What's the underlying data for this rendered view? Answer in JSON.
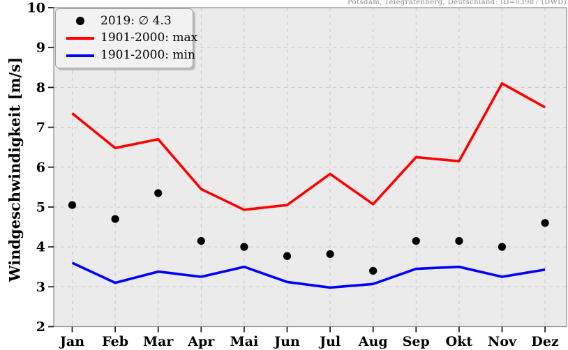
{
  "station_title": "Potsdam, Telegrafenberg, Deutschland: ID=03987 (DWD)",
  "ylabel": "Windgeschwindigkeit [m/s]",
  "chart_data": {
    "type": "line",
    "categories": [
      "Jan",
      "Feb",
      "Mar",
      "Apr",
      "Mai",
      "Jun",
      "Jul",
      "Aug",
      "Sep",
      "Okt",
      "Nov",
      "Dez"
    ],
    "series": [
      {
        "name": "2019: ∅ 4.3",
        "type": "scatter",
        "color": "#000000",
        "values": [
          5.05,
          4.7,
          5.35,
          4.15,
          4.0,
          3.77,
          3.82,
          3.4,
          4.15,
          4.15,
          4.0,
          4.6
        ]
      },
      {
        "name": "1901-2000: max",
        "type": "line",
        "color": "#ff0000",
        "values": [
          7.35,
          6.48,
          6.7,
          5.45,
          4.93,
          5.05,
          5.83,
          5.07,
          6.25,
          6.15,
          8.1,
          7.5
        ]
      },
      {
        "name": "1901-2000: min",
        "type": "line",
        "color": "#0000ff",
        "values": [
          3.6,
          3.1,
          3.38,
          3.25,
          3.5,
          3.12,
          2.98,
          3.07,
          3.45,
          3.5,
          3.25,
          3.43
        ]
      }
    ],
    "ylim": [
      2,
      10
    ],
    "yticks": [
      2,
      3,
      4,
      5,
      6,
      7,
      8,
      9,
      10
    ],
    "grid": true,
    "grid_style": "dashed",
    "legend_position": "upper-left",
    "plot_bg_color": "#ebebeb",
    "grid_color": "#c7c7c7",
    "spine_color": "#8d8d8d"
  }
}
